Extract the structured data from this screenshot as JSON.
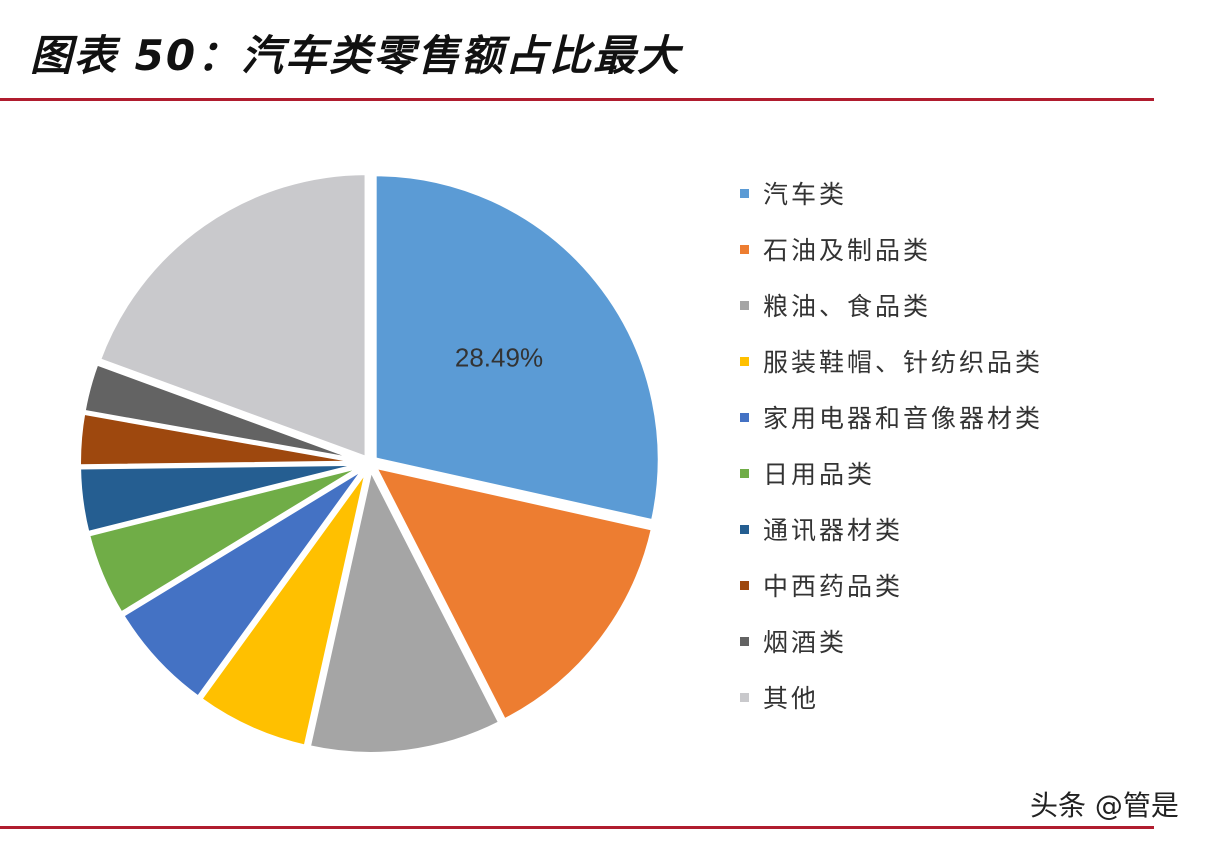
{
  "header": {
    "title": "图表 50：汽车类零售额占比最大"
  },
  "chart_data": {
    "type": "pie",
    "start_angle_deg": 0,
    "direction": "clockwise",
    "categories": [
      "汽车类",
      "石油及制品类",
      "粮油、食品类",
      "服装鞋帽、针纺织品类",
      "家用电器和音像器材类",
      "日用品类",
      "通讯器材类",
      "中西药品类",
      "烟酒类",
      "其他"
    ],
    "values": [
      28.49,
      14.0,
      11.0,
      6.5,
      6.3,
      4.8,
      3.7,
      3.0,
      2.8,
      19.41
    ],
    "colors": [
      "#5b9bd5",
      "#ed7d31",
      "#a5a5a5",
      "#ffc000",
      "#4472c4",
      "#70ad47",
      "#255e91",
      "#9e480e",
      "#636363",
      "#c9c9cc"
    ],
    "data_labels": [
      {
        "index": 0,
        "text": "28.49%"
      }
    ],
    "legend_position": "right"
  },
  "watermark": "头条 @管是"
}
